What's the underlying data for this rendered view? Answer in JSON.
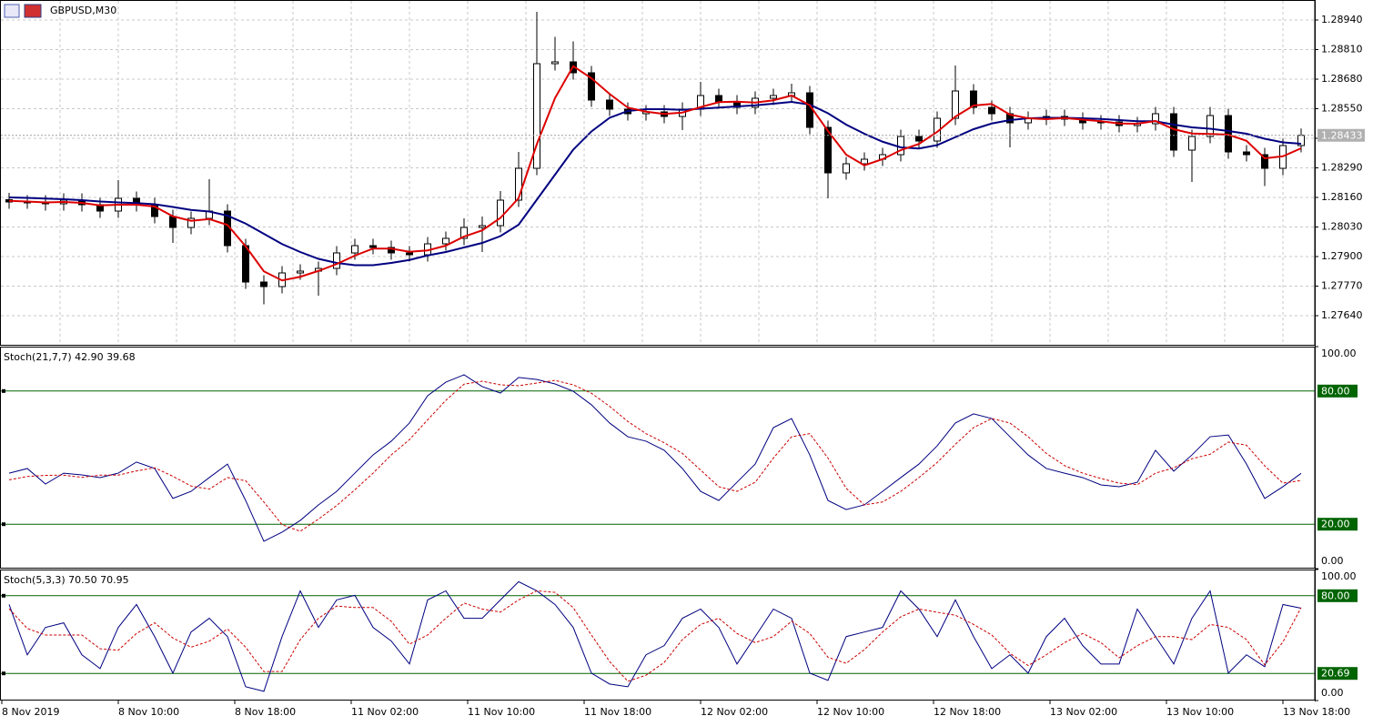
{
  "chart_data": [
    {
      "type": "candlestick",
      "title": "GBPUSD,M30",
      "x_labels": [
        "8 Nov 2019",
        "8 Nov 10:00",
        "8 Nov 18:00",
        "11 Nov 02:00",
        "11 Nov 10:00",
        "11 Nov 18:00",
        "12 Nov 02:00",
        "12 Nov 10:00",
        "12 Nov 18:00",
        "13 Nov 02:00",
        "13 Nov 10:00",
        "13 Nov 18:00"
      ],
      "open": [
        1.2815,
        1.2814,
        1.2814,
        1.28132,
        1.28148,
        1.28128,
        1.281,
        1.28156,
        1.28128,
        1.28076,
        1.28028,
        1.28068,
        1.281,
        1.27948,
        1.27788,
        1.27768,
        1.27828,
        1.27836,
        1.27848,
        1.27916,
        1.27948,
        1.2794,
        1.27916,
        1.27908,
        1.27956,
        1.2798,
        1.28028,
        1.28036,
        1.28148,
        1.28288,
        1.28748,
        1.28756,
        1.28708,
        1.28588,
        1.28548,
        1.28528,
        1.28536,
        1.28516,
        1.28548,
        1.28608,
        1.2858,
        1.28556,
        1.28596,
        1.28608,
        1.2862,
        1.28468,
        1.28268,
        1.28308,
        1.28328,
        1.28348,
        1.28428,
        1.28408,
        1.28508,
        1.28628,
        1.28556,
        1.28528,
        1.28488,
        1.28508,
        1.28516,
        1.28504,
        1.28488,
        1.28492,
        1.28476,
        1.28484,
        1.28528,
        1.28368,
        1.28428,
        1.2852,
        1.2836,
        1.28348,
        1.28288,
        1.28388
      ],
      "high": [
        1.2818,
        1.2817,
        1.2817,
        1.28178,
        1.28178,
        1.28158,
        1.28236,
        1.28186,
        1.28158,
        1.28106,
        1.28098,
        1.2824,
        1.2813,
        1.27978,
        1.27818,
        1.27858,
        1.27866,
        1.27878,
        1.27946,
        1.27978,
        1.27978,
        1.2797,
        1.27946,
        1.27986,
        1.2801,
        1.28068,
        1.28076,
        1.28188,
        1.2836,
        1.28976,
        1.28866,
        1.28846,
        1.28738,
        1.28618,
        1.28578,
        1.28566,
        1.28566,
        1.28578,
        1.28668,
        1.28638,
        1.2861,
        1.28626,
        1.28638,
        1.2866,
        1.2865,
        1.28498,
        1.28338,
        1.28358,
        1.28378,
        1.28458,
        1.28458,
        1.28538,
        1.2874,
        1.28658,
        1.28586,
        1.28558,
        1.28538,
        1.28546,
        1.28546,
        1.28534,
        1.28522,
        1.28522,
        1.28514,
        1.28558,
        1.28558,
        1.28458,
        1.28558,
        1.2855,
        1.2839,
        1.28378,
        1.28418,
        1.28463
      ],
      "low": [
        1.2811,
        1.2811,
        1.28102,
        1.28102,
        1.28098,
        1.2807,
        1.2807,
        1.28098,
        1.28046,
        1.2796,
        1.27998,
        1.28038,
        1.27918,
        1.27758,
        1.2769,
        1.27738,
        1.27798,
        1.27728,
        1.27818,
        1.27886,
        1.2791,
        1.27886,
        1.27878,
        1.27878,
        1.27926,
        1.2795,
        1.2792,
        1.28006,
        1.28118,
        1.28258,
        1.28718,
        1.28678,
        1.28558,
        1.28518,
        1.28498,
        1.28498,
        1.28486,
        1.28456,
        1.28518,
        1.2855,
        1.28526,
        1.28526,
        1.28566,
        1.28578,
        1.28438,
        1.28156,
        1.28238,
        1.28278,
        1.28298,
        1.28318,
        1.28378,
        1.28378,
        1.28478,
        1.28526,
        1.28498,
        1.2838,
        1.28458,
        1.28478,
        1.28474,
        1.28458,
        1.28458,
        1.28446,
        1.28446,
        1.28454,
        1.28338,
        1.28228,
        1.28398,
        1.2833,
        1.28318,
        1.2821,
        1.28258,
        1.28358
      ],
      "close": [
        1.2814,
        1.2814,
        1.28132,
        1.28148,
        1.28128,
        1.281,
        1.28156,
        1.28128,
        1.28076,
        1.28028,
        1.28068,
        1.281,
        1.27948,
        1.27788,
        1.27768,
        1.27828,
        1.27836,
        1.27848,
        1.27916,
        1.27948,
        1.2794,
        1.27916,
        1.27908,
        1.27956,
        1.2798,
        1.28028,
        1.28036,
        1.28148,
        1.28288,
        1.28748,
        1.28756,
        1.28708,
        1.28588,
        1.28548,
        1.28528,
        1.28536,
        1.28516,
        1.28548,
        1.28608,
        1.2858,
        1.28556,
        1.28596,
        1.28608,
        1.2862,
        1.28468,
        1.28268,
        1.28308,
        1.28328,
        1.28348,
        1.28428,
        1.28408,
        1.28508,
        1.28628,
        1.28556,
        1.28528,
        1.28488,
        1.28508,
        1.28516,
        1.28504,
        1.28488,
        1.28492,
        1.28476,
        1.28484,
        1.28528,
        1.28368,
        1.28428,
        1.2852,
        1.2836,
        1.28348,
        1.28288,
        1.28388,
        1.28433
      ],
      "series": [
        {
          "color": "#000080",
          "width": 2,
          "values": [
            1.2816,
            1.28158,
            1.28155,
            1.28152,
            1.28148,
            1.28142,
            1.28138,
            1.28135,
            1.2813,
            1.28118,
            1.28105,
            1.28098,
            1.2808,
            1.28045,
            1.28,
            1.27955,
            1.2792,
            1.2789,
            1.27872,
            1.27862,
            1.27862,
            1.27872,
            1.27885,
            1.27905,
            1.2792,
            1.2794,
            1.2796,
            1.2799,
            1.2804,
            1.2815,
            1.2826,
            1.2837,
            1.2845,
            1.2851,
            1.2854,
            1.28548,
            1.28548,
            1.28545,
            1.2855,
            1.28555,
            1.2856,
            1.28565,
            1.28572,
            1.2858,
            1.28568,
            1.2853,
            1.2848,
            1.2844,
            1.28405,
            1.2838,
            1.28375,
            1.2839,
            1.28425,
            1.2846,
            1.28485,
            1.285,
            1.28508,
            1.2851,
            1.2851,
            1.28508,
            1.28505,
            1.285,
            1.28495,
            1.28495,
            1.2848,
            1.28468,
            1.28462,
            1.28452,
            1.2844,
            1.28418,
            1.28402,
            1.28396
          ]
        },
        {
          "color": "#dd0000",
          "width": 2,
          "values": [
            1.28145,
            1.28142,
            1.28138,
            1.2814,
            1.28136,
            1.28125,
            1.28128,
            1.28128,
            1.2812,
            1.28077,
            1.28057,
            1.28065,
            1.28039,
            1.27945,
            1.27835,
            1.27795,
            1.27811,
            1.27837,
            1.27867,
            1.27904,
            1.27935,
            1.27935,
            1.27921,
            1.27927,
            1.27948,
            1.27988,
            1.28015,
            1.2807,
            1.28157,
            1.28394,
            1.28597,
            1.28737,
            1.28684,
            1.28615,
            1.28555,
            1.28537,
            1.28527,
            1.28533,
            1.28557,
            1.28579,
            1.28581,
            1.28577,
            1.28587,
            1.28608,
            1.28565,
            1.28452,
            1.28348,
            1.28301,
            1.28328,
            1.28368,
            1.28395,
            1.28448,
            1.28515,
            1.28564,
            1.28571,
            1.28524,
            1.28508,
            1.28504,
            1.28509,
            1.28502,
            1.28495,
            1.28485,
            1.28484,
            1.28496,
            1.2846,
            1.28441,
            1.28439,
            1.28436,
            1.28409,
            1.28332,
            1.28341,
            1.28376
          ]
        }
      ],
      "ylim": [
        1.27508,
        1.29028
      ],
      "yticks": [
        {
          "value": 1.2894,
          "label": "1.28940"
        },
        {
          "value": 1.2881,
          "label": "1.28810"
        },
        {
          "value": 1.2868,
          "label": "1.28680"
        },
        {
          "value": 1.2855,
          "label": "1.28550"
        },
        {
          "value": 1.2842,
          "label": "1.28420"
        },
        {
          "value": 1.2829,
          "label": "1.28290"
        },
        {
          "value": 1.2816,
          "label": "1.28160"
        },
        {
          "value": 1.2803,
          "label": "1.28030"
        },
        {
          "value": 1.279,
          "label": "1.27900"
        },
        {
          "value": 1.2777,
          "label": "1.27770"
        },
        {
          "value": 1.2764,
          "label": "1.27640"
        }
      ],
      "current_price": 1.28433,
      "grid": true
    },
    {
      "type": "line",
      "title": "Stoch(21,7,7) 42.90 39.68",
      "series": [
        {
          "color": "#000080",
          "width": 1,
          "values": [
            43.0,
            45.1,
            38.1,
            43.0,
            42.2,
            41.0,
            43.0,
            48.0,
            45.1,
            31.6,
            34.8,
            41.0,
            47.1,
            30.7,
            12.3,
            16.4,
            21.7,
            28.7,
            34.8,
            43.0,
            51.2,
            57.4,
            65.6,
            77.9,
            84.0,
            87.3,
            82.0,
            79.1,
            86.1,
            85.2,
            83.2,
            79.9,
            73.8,
            65.6,
            59.4,
            57.4,
            53.3,
            45.1,
            34.8,
            30.7,
            38.9,
            47.1,
            63.5,
            67.6,
            51.2,
            30.7,
            26.6,
            28.7,
            34.8,
            41.0,
            47.1,
            55.3,
            65.6,
            69.7,
            67.6,
            59.4,
            51.2,
            45.1,
            43.0,
            41.0,
            37.7,
            36.9,
            38.9,
            53.3,
            43.9,
            51.2,
            59.4,
            60.2,
            47.1,
            31.6,
            36.9,
            42.9
          ]
        },
        {
          "color": "#cc0000",
          "width": 1,
          "dash": true,
          "values": [
            40.0,
            41.5,
            42.0,
            42.1,
            41.1,
            42.1,
            42.1,
            44.0,
            45.4,
            41.6,
            37.2,
            35.8,
            41.0,
            39.6,
            30.0,
            19.8,
            16.8,
            22.3,
            28.4,
            35.5,
            43.0,
            51.2,
            58.1,
            67.0,
            75.8,
            83.1,
            84.4,
            82.8,
            82.4,
            83.6,
            84.8,
            82.8,
            79.0,
            73.1,
            66.3,
            60.8,
            56.7,
            51.9,
            44.4,
            36.9,
            34.8,
            38.9,
            49.8,
            59.4,
            60.8,
            49.8,
            36.2,
            28.7,
            30.0,
            34.8,
            41.0,
            47.8,
            56.0,
            63.5,
            67.6,
            65.6,
            59.4,
            51.9,
            46.4,
            43.0,
            40.6,
            38.5,
            37.8,
            43.0,
            45.4,
            49.5,
            51.5,
            57.0,
            55.6,
            46.3,
            38.5,
            39.68
          ]
        }
      ],
      "ylim": [
        0,
        100
      ],
      "yticks": [
        {
          "value": 100,
          "label": "100.00"
        },
        {
          "value": 80,
          "label": "80.00",
          "level": true
        },
        {
          "value": 20,
          "label": "20.00",
          "level": true
        },
        {
          "value": 0,
          "label": "0.00"
        }
      ]
    },
    {
      "type": "line",
      "title": "Stoch(5,3,3) 70.50 70.95",
      "series": [
        {
          "color": "#000080",
          "width": 1,
          "values": [
            73.3,
            34.9,
            55.8,
            59.3,
            34.9,
            24.4,
            55.8,
            73.3,
            48.8,
            20.9,
            52.3,
            62.8,
            48.8,
            10.5,
            7.0,
            48.8,
            83.7,
            55.8,
            76.8,
            80.3,
            55.8,
            45.4,
            27.9,
            76.8,
            83.7,
            62.8,
            62.8,
            76.8,
            90.7,
            83.7,
            73.3,
            55.8,
            20.9,
            12.6,
            10.5,
            34.9,
            41.9,
            62.8,
            69.8,
            55.8,
            27.9,
            48.8,
            69.8,
            62.8,
            20.9,
            15.4,
            48.8,
            52.3,
            55.8,
            83.7,
            69.8,
            48.8,
            76.8,
            48.8,
            24.4,
            34.9,
            20.9,
            48.8,
            62.8,
            41.9,
            27.9,
            27.9,
            69.8,
            48.8,
            27.9,
            62.8,
            83.7,
            20.9,
            34.9,
            25.8,
            73.3,
            70.5
          ]
        },
        {
          "color": "#cc0000",
          "width": 1,
          "dash": true,
          "values": [
            70.0,
            55.0,
            50.0,
            50.0,
            50.0,
            39.5,
            38.4,
            51.2,
            59.3,
            47.7,
            40.7,
            45.3,
            54.6,
            40.7,
            22.1,
            22.1,
            46.5,
            62.8,
            72.1,
            71.0,
            71.0,
            60.5,
            43.0,
            50.0,
            62.8,
            74.4,
            69.8,
            67.5,
            76.8,
            83.7,
            82.6,
            70.9,
            50.0,
            29.8,
            14.7,
            19.3,
            29.1,
            46.5,
            58.1,
            62.8,
            51.2,
            44.2,
            48.8,
            60.5,
            51.2,
            33.0,
            28.4,
            38.8,
            52.3,
            63.9,
            69.8,
            67.4,
            65.1,
            58.1,
            50.0,
            36.0,
            26.7,
            34.9,
            44.2,
            51.2,
            44.2,
            32.6,
            41.9,
            48.8,
            48.8,
            46.5,
            58.1,
            55.8,
            46.5,
            27.2,
            44.7,
            70.95
          ]
        }
      ],
      "ylim": [
        0,
        100
      ],
      "yticks": [
        {
          "value": 100,
          "label": "100.00"
        },
        {
          "value": 80,
          "label": "80.00",
          "level": true
        },
        {
          "value": 20.69,
          "label": "20.69",
          "level": true
        },
        {
          "value": 0,
          "label": "0.00"
        }
      ]
    }
  ]
}
